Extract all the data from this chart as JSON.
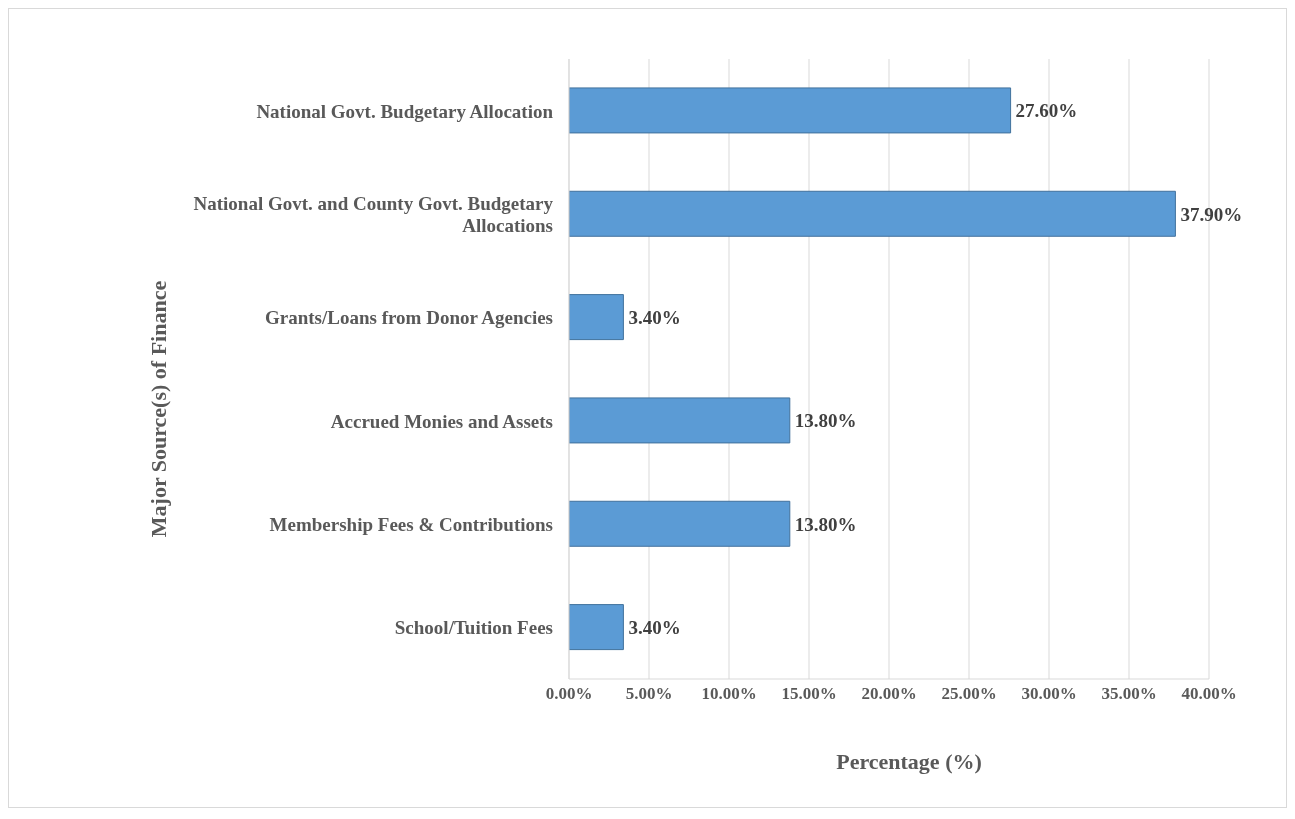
{
  "chart_data": {
    "type": "bar",
    "orientation": "horizontal",
    "xlabel": "Percentage (%)",
    "ylabel": "Major Source(s) of Finance",
    "categories": [
      "National Govt. Budgetary Allocation",
      "National Govt. and County Govt. Budgetary Allocations",
      "Grants/Loans from Donor Agencies",
      "Accrued Monies and Assets",
      "Membership Fees & Contributions",
      "School/Tuition Fees"
    ],
    "values": [
      27.6,
      37.9,
      3.4,
      13.8,
      13.8,
      3.4
    ],
    "value_labels": [
      "27.60%",
      "37.90%",
      "3.40%",
      "13.80%",
      "13.80%",
      "3.40%"
    ],
    "color": "#5b9bd5",
    "xlim": [
      0,
      40
    ],
    "xticks": [
      {
        "value": 0,
        "label": "0.00%"
      },
      {
        "value": 5,
        "label": "5.00%"
      },
      {
        "value": 10,
        "label": "10.00%"
      },
      {
        "value": 15,
        "label": "15.00%"
      },
      {
        "value": 20,
        "label": "20.00%"
      },
      {
        "value": 25,
        "label": "25.00%"
      },
      {
        "value": 30,
        "label": "30.00%"
      },
      {
        "value": 35,
        "label": "35.00%"
      },
      {
        "value": 40,
        "label": "40.00%"
      }
    ],
    "grid": "x",
    "legend": false
  }
}
